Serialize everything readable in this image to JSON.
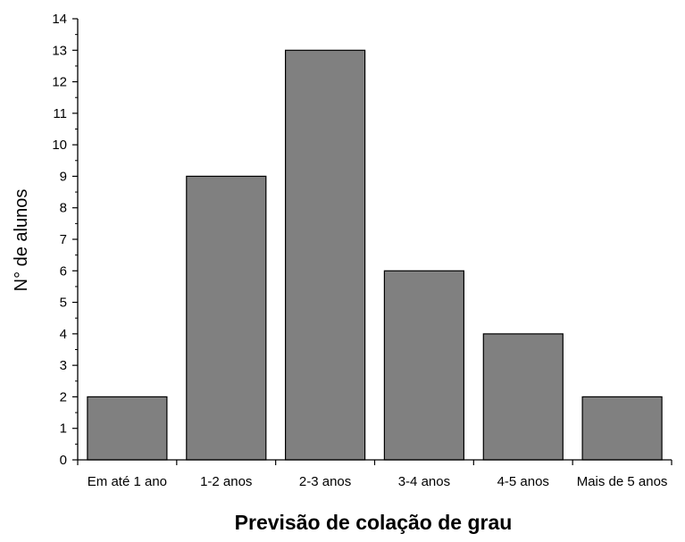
{
  "chart_data": {
    "type": "bar",
    "categories": [
      "Em até 1 ano",
      "1-2 anos",
      "2-3 anos",
      "3-4 anos",
      "4-5 anos",
      "Mais de 5 anos"
    ],
    "values": [
      2,
      9,
      13,
      6,
      4,
      2
    ],
    "xlabel": "Previsão de colação de grau",
    "ylabel": "N° de alunos",
    "ylim": [
      0,
      14
    ],
    "yticks": [
      0,
      1,
      2,
      3,
      4,
      5,
      6,
      7,
      8,
      9,
      10,
      11,
      12,
      13,
      14
    ],
    "bar_color": "#808080",
    "grid": false
  }
}
